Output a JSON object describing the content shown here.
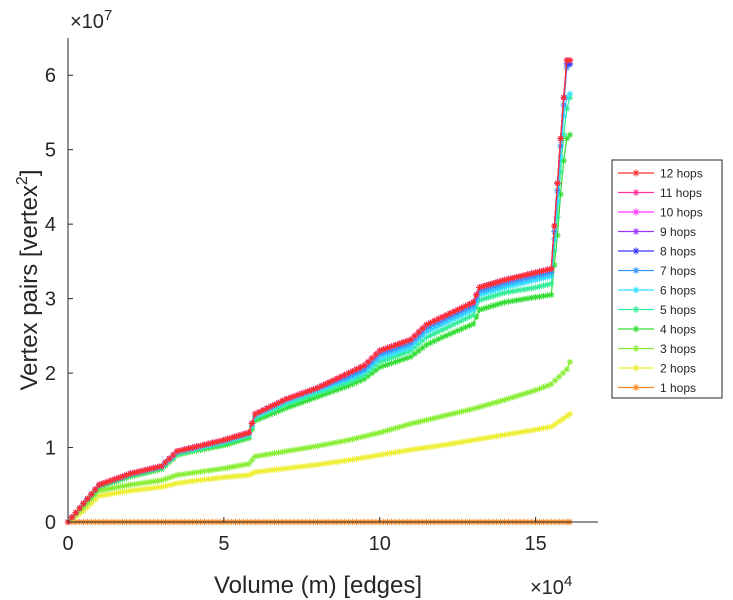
{
  "chart_data": {
    "type": "line",
    "title": "",
    "xlabel": "Volume (m) [edges]",
    "ylabel": "Vertex pairs [vertex",
    "ylabel_sup": "2",
    "ylabel_close": "]",
    "x_exponent_base": "×10",
    "x_exponent_power": "4",
    "y_exponent_base": "×10",
    "y_exponent_power": "7",
    "xlim": [
      0,
      17
    ],
    "ylim": [
      0,
      6.5
    ],
    "xticks": [
      0,
      5,
      10,
      15
    ],
    "xtick_labels": [
      "0",
      "5",
      "10",
      "15"
    ],
    "yticks": [
      0,
      1,
      2,
      3,
      4,
      5,
      6
    ],
    "ytick_labels": [
      "0",
      "1",
      "2",
      "3",
      "4",
      "5",
      "6"
    ],
    "legend_position": "right",
    "series": [
      {
        "name": "12 hops",
        "color": "#ff3030",
        "x": [
          0,
          0.5,
          1,
          2,
          3,
          3.5,
          4,
          5,
          5.8,
          6,
          7,
          8,
          9,
          9.5,
          10,
          11,
          11.5,
          12,
          13,
          13.2,
          14,
          15,
          15.5,
          15.7,
          15.8,
          15.9,
          16,
          16.1
        ],
        "y": [
          0,
          0.25,
          0.5,
          0.65,
          0.75,
          0.95,
          1.0,
          1.1,
          1.2,
          1.45,
          1.65,
          1.8,
          2.0,
          2.1,
          2.3,
          2.45,
          2.65,
          2.75,
          2.95,
          3.15,
          3.25,
          3.35,
          3.4,
          4.55,
          5.15,
          5.7,
          6.2,
          6.2
        ]
      },
      {
        "name": "11 hops",
        "color": "#ff3399",
        "x": [
          0,
          0.5,
          1,
          2,
          3,
          3.5,
          4,
          5,
          5.8,
          6,
          7,
          8,
          9,
          9.5,
          10,
          11,
          11.5,
          12,
          13,
          13.2,
          14,
          15,
          15.5,
          15.7,
          15.8,
          15.9,
          16,
          16.1
        ],
        "y": [
          0,
          0.25,
          0.5,
          0.65,
          0.75,
          0.95,
          1.0,
          1.1,
          1.2,
          1.45,
          1.65,
          1.8,
          2.0,
          2.1,
          2.3,
          2.45,
          2.65,
          2.75,
          2.95,
          3.15,
          3.25,
          3.35,
          3.4,
          4.55,
          5.15,
          5.7,
          6.2,
          6.2
        ]
      },
      {
        "name": "10 hops",
        "color": "#ff33ff",
        "x": [
          0,
          0.5,
          1,
          2,
          3,
          3.5,
          4,
          5,
          5.8,
          6,
          7,
          8,
          9,
          9.5,
          10,
          11,
          11.5,
          12,
          13,
          13.2,
          14,
          15,
          15.5,
          15.7,
          15.8,
          15.9,
          16,
          16.1
        ],
        "y": [
          0,
          0.25,
          0.5,
          0.65,
          0.75,
          0.95,
          1.0,
          1.1,
          1.2,
          1.45,
          1.65,
          1.8,
          2.0,
          2.1,
          2.3,
          2.45,
          2.65,
          2.75,
          2.95,
          3.15,
          3.25,
          3.35,
          3.4,
          4.55,
          5.15,
          5.7,
          6.2,
          6.2
        ]
      },
      {
        "name": "9 hops",
        "color": "#9933ff",
        "x": [
          0,
          0.5,
          1,
          2,
          3,
          3.5,
          4,
          5,
          5.8,
          6,
          7,
          8,
          9,
          9.5,
          10,
          11,
          11.5,
          12,
          13,
          13.2,
          14,
          15,
          15.5,
          15.7,
          15.8,
          15.9,
          16,
          16.1
        ],
        "y": [
          0,
          0.25,
          0.5,
          0.65,
          0.75,
          0.95,
          1.0,
          1.1,
          1.2,
          1.45,
          1.65,
          1.8,
          2.0,
          2.1,
          2.3,
          2.45,
          2.65,
          2.75,
          2.95,
          3.15,
          3.25,
          3.35,
          3.4,
          4.55,
          5.15,
          5.7,
          6.2,
          6.2
        ]
      },
      {
        "name": "8 hops",
        "color": "#3333ff",
        "x": [
          0,
          0.5,
          1,
          2,
          3,
          3.5,
          4,
          5,
          5.8,
          6,
          7,
          8,
          9,
          9.5,
          10,
          11,
          11.5,
          12,
          13,
          13.2,
          14,
          15,
          15.5,
          15.7,
          15.8,
          15.9,
          16,
          16.1
        ],
        "y": [
          0,
          0.25,
          0.5,
          0.65,
          0.75,
          0.95,
          1.0,
          1.1,
          1.2,
          1.45,
          1.65,
          1.8,
          2.0,
          2.1,
          2.3,
          2.45,
          2.65,
          2.75,
          2.95,
          3.15,
          3.25,
          3.35,
          3.4,
          4.55,
          5.15,
          5.7,
          6.15,
          6.15
        ]
      },
      {
        "name": "7 hops",
        "color": "#3399ff",
        "x": [
          0,
          0.5,
          1,
          2,
          3,
          3.5,
          4,
          5,
          5.8,
          6,
          7,
          8,
          9,
          9.5,
          10,
          11,
          11.5,
          12,
          13,
          13.2,
          14,
          15,
          15.5,
          15.7,
          15.8,
          15.9,
          16,
          16.1
        ],
        "y": [
          0,
          0.25,
          0.5,
          0.65,
          0.75,
          0.95,
          1.0,
          1.1,
          1.2,
          1.45,
          1.65,
          1.8,
          1.95,
          2.05,
          2.25,
          2.4,
          2.6,
          2.7,
          2.9,
          3.1,
          3.2,
          3.3,
          3.35,
          4.45,
          5.05,
          5.6,
          6.1,
          6.15
        ]
      },
      {
        "name": "6 hops",
        "color": "#33ddff",
        "x": [
          0,
          0.5,
          1,
          2,
          3,
          3.5,
          4,
          5,
          5.8,
          6,
          7,
          8,
          9,
          9.5,
          10,
          11,
          11.5,
          12,
          13,
          13.2,
          14,
          15,
          15.5,
          15.7,
          15.8,
          15.9,
          16,
          16.1
        ],
        "y": [
          0,
          0.25,
          0.5,
          0.64,
          0.74,
          0.93,
          0.98,
          1.08,
          1.18,
          1.42,
          1.62,
          1.77,
          1.92,
          2.02,
          2.2,
          2.35,
          2.55,
          2.65,
          2.85,
          3.05,
          3.15,
          3.25,
          3.3,
          4.3,
          4.9,
          5.45,
          5.7,
          5.75
        ]
      },
      {
        "name": "5 hops",
        "color": "#33ee99",
        "x": [
          0,
          0.5,
          1,
          2,
          3,
          3.5,
          4,
          5,
          5.8,
          6,
          7,
          8,
          9,
          9.5,
          10,
          11,
          11.5,
          12,
          13,
          13.2,
          14,
          15,
          15.5,
          15.7,
          15.8,
          15.9,
          16,
          16.1
        ],
        "y": [
          0,
          0.25,
          0.49,
          0.63,
          0.73,
          0.92,
          0.97,
          1.06,
          1.16,
          1.4,
          1.58,
          1.73,
          1.88,
          1.97,
          2.15,
          2.3,
          2.48,
          2.58,
          2.78,
          2.98,
          3.08,
          3.15,
          3.2,
          4.1,
          4.7,
          5.2,
          5.55,
          5.7
        ]
      },
      {
        "name": "4 hops",
        "color": "#33dd33",
        "x": [
          0,
          0.5,
          1,
          2,
          3,
          3.5,
          4,
          5,
          5.8,
          6,
          7,
          8,
          9,
          9.5,
          10,
          11,
          11.5,
          12,
          13,
          13.2,
          14,
          15,
          15.5,
          15.7,
          15.8,
          15.9,
          16,
          16.1
        ],
        "y": [
          0,
          0.24,
          0.47,
          0.61,
          0.71,
          0.9,
          0.95,
          1.03,
          1.13,
          1.36,
          1.53,
          1.68,
          1.83,
          1.92,
          2.08,
          2.22,
          2.38,
          2.48,
          2.66,
          2.85,
          2.95,
          3.02,
          3.05,
          3.85,
          4.4,
          4.85,
          5.15,
          5.2
        ]
      },
      {
        "name": "3 hops",
        "color": "#88ee33",
        "x": [
          0,
          0.5,
          1,
          2,
          3,
          3.5,
          4,
          5,
          5.8,
          6,
          7,
          8,
          9,
          10,
          11,
          12,
          13,
          14,
          15,
          15.5,
          16,
          16.1
        ],
        "y": [
          0,
          0.2,
          0.42,
          0.5,
          0.56,
          0.63,
          0.66,
          0.72,
          0.78,
          0.88,
          0.95,
          1.02,
          1.1,
          1.2,
          1.32,
          1.42,
          1.52,
          1.64,
          1.77,
          1.85,
          2.05,
          2.15
        ]
      },
      {
        "name": "2 hops",
        "color": "#eeee33",
        "x": [
          0,
          0.5,
          1,
          2,
          3,
          3.5,
          4,
          5,
          5.8,
          6,
          7,
          8,
          9,
          10,
          11,
          12,
          13,
          14,
          15,
          15.5,
          16,
          16.1
        ],
        "y": [
          0,
          0.15,
          0.35,
          0.42,
          0.47,
          0.52,
          0.55,
          0.6,
          0.63,
          0.67,
          0.72,
          0.77,
          0.83,
          0.9,
          0.97,
          1.03,
          1.1,
          1.17,
          1.24,
          1.28,
          1.42,
          1.45
        ]
      },
      {
        "name": "1 hops",
        "color": "#ff8822",
        "x": [
          0,
          1,
          2,
          3,
          4,
          5,
          6,
          7,
          8,
          9,
          10,
          11,
          12,
          13,
          14,
          15,
          16,
          16.1
        ],
        "y": [
          0,
          0,
          0,
          0,
          0,
          0,
          0,
          0,
          0,
          0,
          0,
          0,
          0,
          0,
          0,
          0,
          0,
          0
        ]
      }
    ]
  }
}
